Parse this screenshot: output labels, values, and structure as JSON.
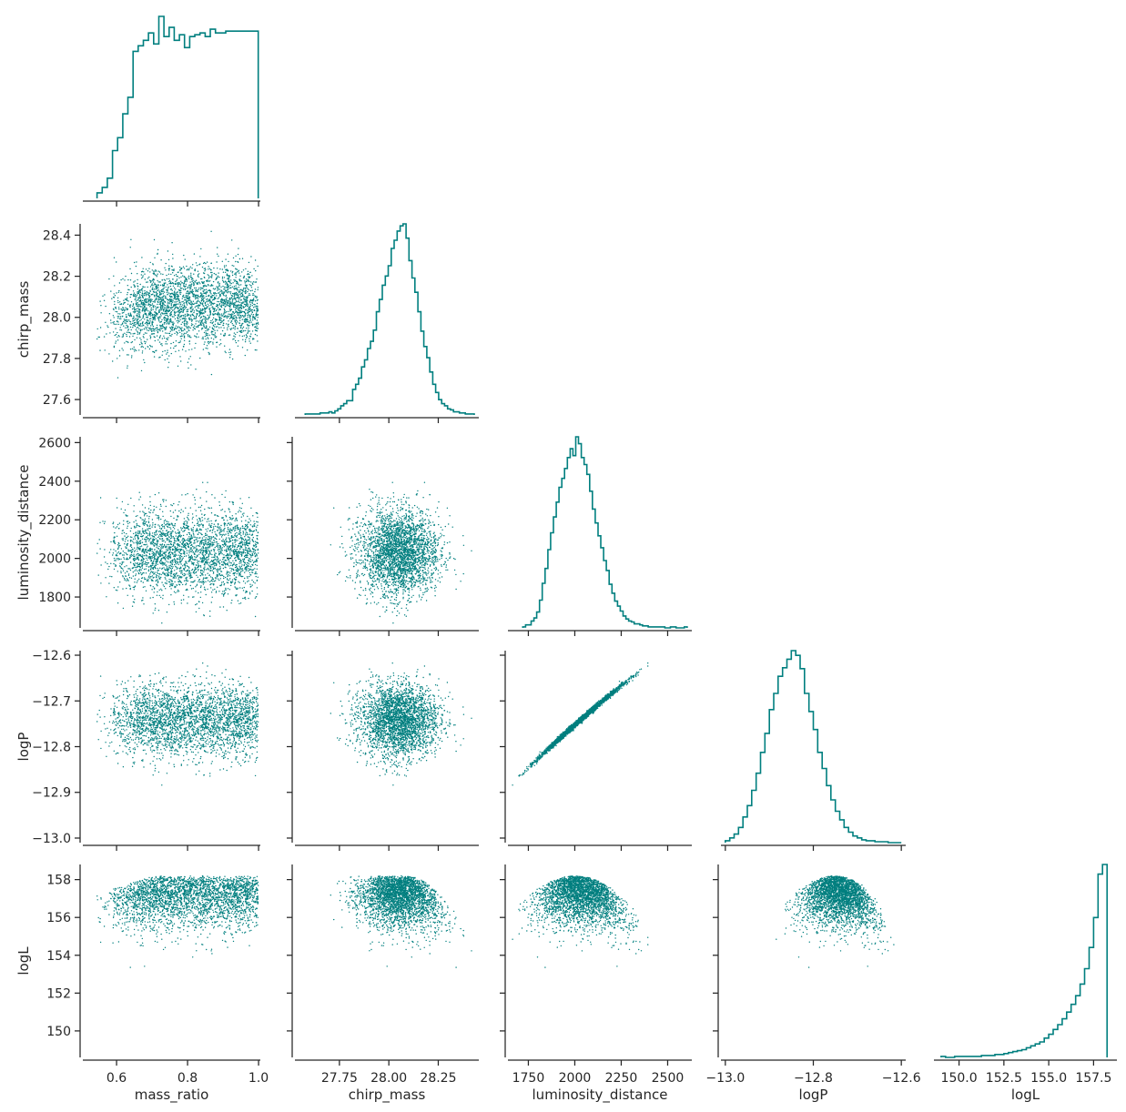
{
  "chart_data": {
    "type": "scatter",
    "title": "",
    "color": "#007f7f",
    "variables": [
      "mass_ratio",
      "chirp_mass",
      "luminosity_distance",
      "logP",
      "logL"
    ],
    "axis_labels": [
      "mass_ratio",
      "chirp_mass",
      "luminosity_distance",
      "logP",
      "logL"
    ],
    "ranges": {
      "mass_ratio": [
        0.505,
        1.005
      ],
      "chirp_mass": [
        27.525,
        28.455
      ],
      "luminosity_distance": [
        1640,
        2630
      ],
      "logP": [
        -13.01,
        -12.59
      ],
      "logL": [
        148.6,
        158.8
      ]
    },
    "ticks": {
      "mass_ratio": [
        0.6,
        0.8,
        1.0
      ],
      "chirp_mass": [
        27.75,
        28.0,
        28.25
      ],
      "luminosity_distance": [
        1750,
        2000,
        2250,
        2500
      ],
      "logP": [
        -13.0,
        -12.8,
        -12.6
      ],
      "logL": [
        150.0,
        152.5,
        155.0,
        157.5
      ]
    },
    "tick_labels": {
      "mass_ratio": [
        "0.6",
        "0.8",
        "1.0"
      ],
      "chirp_mass": [
        "27.75",
        "28.00",
        "28.25"
      ],
      "luminosity_distance": [
        "1750",
        "2000",
        "2250",
        "2500"
      ],
      "logP": [
        "−13.0",
        "−12.8",
        "−12.6"
      ],
      "logL": [
        "150.0",
        "152.5",
        "155.0",
        "157.5"
      ]
    },
    "y_ticks": {
      "chirp_mass": [
        27.6,
        27.8,
        28.0,
        28.2,
        28.4
      ],
      "luminosity_distance": [
        1800,
        2000,
        2200,
        2400,
        2600
      ],
      "logP": [
        -13.0,
        -12.9,
        -12.8,
        -12.7,
        -12.6
      ],
      "logL": [
        150,
        152,
        154,
        156,
        158
      ]
    },
    "y_tick_labels": {
      "chirp_mass": [
        "27.6",
        "27.8",
        "28.0",
        "28.2",
        "28.4"
      ],
      "luminosity_distance": [
        "1800",
        "2000",
        "2200",
        "2400",
        "2600"
      ],
      "logP": [
        "−13.0",
        "−12.9",
        "−12.8",
        "−12.7",
        "−12.6"
      ],
      "logL": [
        "150",
        "152",
        "154",
        "156",
        "158"
      ]
    },
    "histograms": {
      "mass_ratio": {
        "edges": [
          0.545,
          0.5595,
          0.574,
          0.5885,
          0.603,
          0.6175,
          0.632,
          0.6465,
          0.661,
          0.6755,
          0.69,
          0.7045,
          0.719,
          0.7335,
          0.748,
          0.7625,
          0.777,
          0.7915,
          0.806,
          0.8205,
          0.835,
          0.8495,
          0.864,
          0.8785,
          0.893,
          0.9075,
          0.922,
          0.9365,
          0.951,
          0.9655,
          0.98,
          0.999
        ],
        "counts": [
          3,
          6,
          11,
          26,
          33,
          46,
          55,
          80,
          83,
          86,
          90,
          84,
          99,
          88,
          93,
          86,
          89,
          82,
          88,
          89,
          90,
          88,
          92,
          90,
          90,
          91,
          91,
          91,
          91,
          91,
          91
        ]
      },
      "chirp_mass": {
        "edges": [
          27.577,
          27.592,
          27.607,
          27.622,
          27.637,
          27.652,
          27.667,
          27.682,
          27.697,
          27.712,
          27.727,
          27.742,
          27.757,
          27.772,
          27.787,
          27.802,
          27.817,
          27.832,
          27.847,
          27.862,
          27.877,
          27.892,
          27.907,
          27.922,
          27.937,
          27.952,
          27.967,
          27.982,
          27.997,
          28.012,
          28.027,
          28.042,
          28.057,
          28.072,
          28.087,
          28.102,
          28.117,
          28.132,
          28.147,
          28.162,
          28.177,
          28.192,
          28.207,
          28.222,
          28.237,
          28.252,
          28.267,
          28.282,
          28.297,
          28.312,
          28.327,
          28.342,
          28.357,
          28.372,
          28.387,
          28.402,
          28.417,
          28.432
        ],
        "counts": [
          1,
          1,
          1,
          1,
          1,
          2,
          2,
          2,
          3,
          2,
          4,
          6,
          9,
          11,
          14,
          14,
          25,
          30,
          36,
          47,
          54,
          65,
          72,
          83,
          101,
          113,
          127,
          136,
          146,
          163,
          171,
          180,
          185,
          187,
          173,
          151,
          134,
          120,
          101,
          82,
          67,
          56,
          42,
          30,
          22,
          15,
          11,
          9,
          6,
          5,
          3,
          3,
          2,
          2,
          1,
          1,
          1
        ]
      },
      "luminosity_distance": {
        "edges": [
          1720,
          1735,
          1750,
          1765,
          1780,
          1795,
          1810,
          1825,
          1840,
          1855,
          1870,
          1885,
          1900,
          1915,
          1930,
          1945,
          1960,
          1975,
          1990,
          2005,
          2020,
          2035,
          2050,
          2065,
          2080,
          2095,
          2110,
          2125,
          2140,
          2155,
          2170,
          2185,
          2200,
          2215,
          2230,
          2245,
          2260,
          2275,
          2290,
          2305,
          2320,
          2335,
          2350,
          2365,
          2380,
          2395,
          2410,
          2425,
          2440,
          2455,
          2470,
          2485,
          2500,
          2515,
          2530,
          2545,
          2560,
          2575,
          2590,
          2605
        ],
        "counts": [
          1,
          3,
          3,
          7,
          10,
          16,
          28,
          45,
          60,
          79,
          96,
          112,
          127,
          142,
          151,
          161,
          172,
          181,
          174,
          193,
          186,
          172,
          165,
          155,
          138,
          120,
          106,
          93,
          81,
          68,
          58,
          44,
          35,
          27,
          22,
          17,
          12,
          9,
          7,
          6,
          4,
          4,
          3,
          2,
          2,
          1,
          1,
          1,
          1,
          1,
          1,
          0,
          0,
          1,
          1,
          0,
          0,
          0,
          1
        ]
      },
      "logP": {
        "edges": [
          -13.0,
          -12.99,
          -12.98,
          -12.97,
          -12.96,
          -12.95,
          -12.94,
          -12.93,
          -12.92,
          -12.91,
          -12.9,
          -12.89,
          -12.88,
          -12.87,
          -12.86,
          -12.85,
          -12.84,
          -12.83,
          -12.82,
          -12.81,
          -12.8,
          -12.79,
          -12.78,
          -12.77,
          -12.76,
          -12.75,
          -12.74,
          -12.73,
          -12.72,
          -12.71,
          -12.7,
          -12.69,
          -12.68,
          -12.67,
          -12.66,
          -12.65,
          -12.64,
          -12.63,
          -12.62,
          -12.61,
          -12.6
        ],
        "counts": [
          2,
          5,
          9,
          16,
          27,
          39,
          55,
          73,
          95,
          115,
          140,
          157,
          175,
          184,
          193,
          202,
          197,
          183,
          157,
          138,
          119,
          95,
          78,
          60,
          45,
          33,
          24,
          16,
          11,
          7,
          5,
          3,
          2,
          2,
          1,
          1,
          1,
          0,
          0,
          0
        ]
      },
      "logL": {
        "edges": [
          149.0,
          149.25,
          149.5,
          149.75,
          150.0,
          150.25,
          150.5,
          150.75,
          151.0,
          151.25,
          151.5,
          151.75,
          152.0,
          152.25,
          152.5,
          152.75,
          153.0,
          153.25,
          153.5,
          153.75,
          154.0,
          154.25,
          154.5,
          154.75,
          155.0,
          155.25,
          155.5,
          155.75,
          156.0,
          156.25,
          156.5,
          156.75,
          157.0,
          157.25,
          157.5,
          157.75,
          158.0,
          158.25
        ],
        "counts": [
          1,
          0,
          0,
          1,
          1,
          1,
          1,
          1,
          1,
          2,
          2,
          2,
          3,
          3,
          4,
          5,
          6,
          7,
          8,
          10,
          12,
          14,
          16,
          20,
          24,
          29,
          34,
          40,
          47,
          55,
          64,
          76,
          92,
          114,
          145,
          190,
          200
        ]
      }
    }
  }
}
